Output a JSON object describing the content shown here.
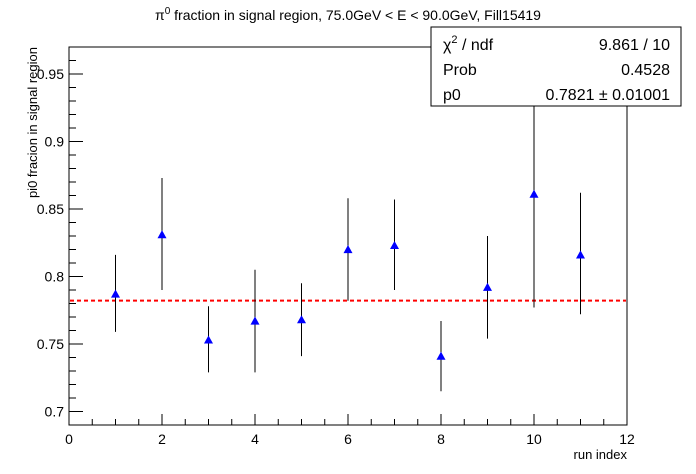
{
  "chart_data": {
    "type": "scatter",
    "title_prefix": "π",
    "title_sup": "0",
    "title_rest": " fraction in signal region, 75.0GeV < E < 90.0GeV, Fill15419",
    "xlabel": "run index",
    "ylabel": "pi0 fracion in signal region",
    "xlim": [
      0,
      12
    ],
    "ylim": [
      0.69,
      0.97
    ],
    "x_ticks": [
      0,
      2,
      4,
      6,
      8,
      10,
      12
    ],
    "y_ticks": [
      0.7,
      0.75,
      0.8,
      0.85,
      0.9,
      0.95
    ],
    "x_tick_labels": [
      "0",
      "2",
      "4",
      "6",
      "8",
      "10",
      "12"
    ],
    "y_tick_labels": [
      "0.7",
      "0.75",
      "0.8",
      "0.85",
      "0.9",
      "0.95"
    ],
    "grid": false,
    "series": [
      {
        "marker": "triangle",
        "color": "#0000ff",
        "x": [
          1,
          2,
          3,
          4,
          5,
          6,
          7,
          8,
          9,
          10,
          11
        ],
        "y": [
          0.787,
          0.831,
          0.753,
          0.767,
          0.768,
          0.82,
          0.823,
          0.741,
          0.792,
          0.861,
          0.816
        ],
        "err_low": [
          0.759,
          0.79,
          0.729,
          0.729,
          0.741,
          0.782,
          0.79,
          0.715,
          0.754,
          0.777,
          0.772
        ],
        "err_high": [
          0.816,
          0.873,
          0.778,
          0.805,
          0.795,
          0.858,
          0.857,
          0.767,
          0.83,
          0.945,
          0.862
        ]
      }
    ],
    "fit_line": {
      "y": 0.7821,
      "color": "#ff0000",
      "style": "dashed"
    },
    "stats_box": {
      "placement": "top-right",
      "rows": [
        {
          "label_main": "χ",
          "label_sup": "2",
          "label_rest": " / ndf",
          "value": "9.861 / 10"
        },
        {
          "label_main": "Prob",
          "label_sup": "",
          "label_rest": "",
          "value": "0.4528"
        },
        {
          "label_main": "p0",
          "label_sup": "",
          "label_rest": "",
          "value": "0.7821 ± 0.01001"
        }
      ]
    }
  }
}
